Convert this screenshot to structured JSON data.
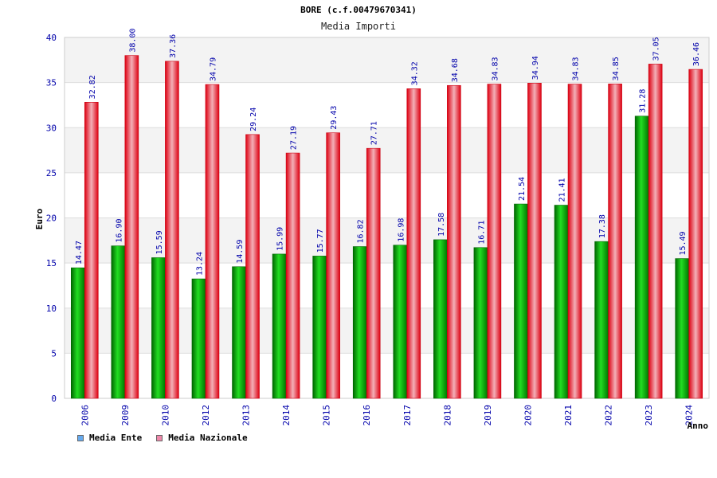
{
  "chart_data": {
    "type": "bar",
    "title": "BORE (c.f.00479670341)",
    "subtitle": "Media Importi",
    "xlabel": "Anno",
    "ylabel": "Euro",
    "ylim": [
      0,
      40
    ],
    "yticks": [
      "0",
      "5",
      "10",
      "15",
      "20",
      "25",
      "30",
      "35",
      "40"
    ],
    "grid": true,
    "legend_position": "bottom-left",
    "categories": [
      "2006",
      "2009",
      "2010",
      "2012",
      "2013",
      "2014",
      "2015",
      "2016",
      "2017",
      "2018",
      "2019",
      "2020",
      "2021",
      "2022",
      "2023",
      "2024"
    ],
    "series": [
      {
        "name": "Media Ente",
        "color": "#00aa00",
        "values": [
          14.47,
          16.9,
          15.59,
          13.24,
          14.59,
          15.99,
          15.77,
          16.82,
          16.98,
          17.58,
          16.71,
          21.54,
          21.41,
          17.38,
          31.28,
          15.49
        ],
        "labels": [
          "14.47",
          "16.90",
          "15.59",
          "13.24",
          "14.59",
          "15.99",
          "15.77",
          "16.82",
          "16.98",
          "17.58",
          "16.71",
          "21.54",
          "21.41",
          "17.38",
          "31.28",
          "15.49"
        ]
      },
      {
        "name": "Media Nazionale",
        "color": "#ee1122",
        "values": [
          32.82,
          38.0,
          37.36,
          34.79,
          29.24,
          27.19,
          29.43,
          27.71,
          34.32,
          34.68,
          34.83,
          34.94,
          34.83,
          34.85,
          37.05,
          36.46
        ],
        "labels": [
          "32.82",
          "38.00",
          "37.36",
          "34.79",
          "29.24",
          "27.19",
          "29.43",
          "27.71",
          "34.32",
          "34.68",
          "34.83",
          "34.94",
          "34.83",
          "34.85",
          "37.05",
          "36.46"
        ]
      }
    ]
  },
  "legend": {
    "items": [
      {
        "label": "Media Ente",
        "color": "#66aaee"
      },
      {
        "label": "Media Nazionale",
        "color": "#ee88aa"
      }
    ]
  }
}
